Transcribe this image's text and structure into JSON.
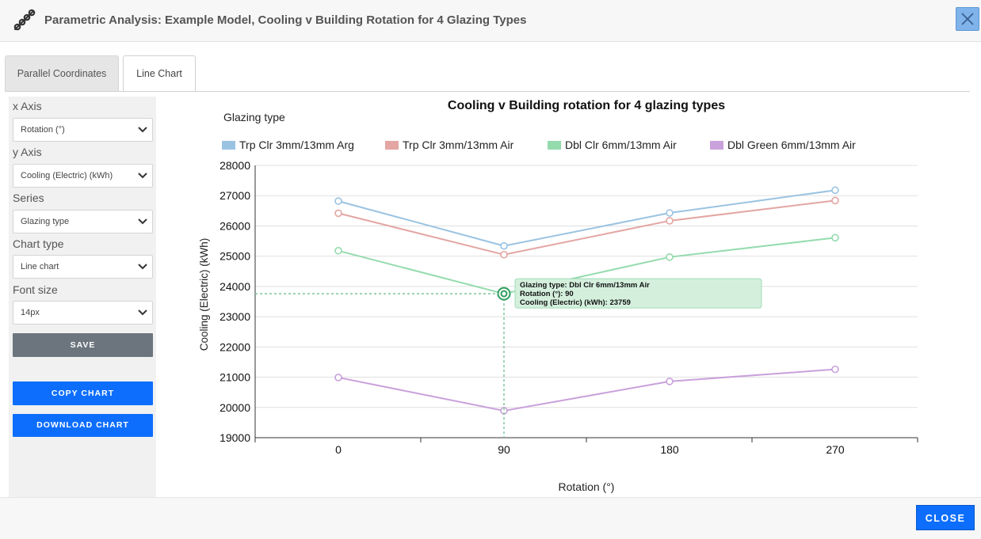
{
  "window": {
    "title": "Parametric Analysis: Example Model, Cooling v Building Rotation for 4 Glazing Types"
  },
  "tabs": [
    {
      "label": "Parallel Coordinates",
      "active": false
    },
    {
      "label": "Line Chart",
      "active": true
    }
  ],
  "sidebar": {
    "x_axis": {
      "label": "x Axis",
      "value": "Rotation (°)"
    },
    "y_axis": {
      "label": "y Axis",
      "value": "Cooling (Electric) (kWh)"
    },
    "series": {
      "label": "Series",
      "value": "Glazing type"
    },
    "chart_type": {
      "label": "Chart type",
      "value": "Line chart"
    },
    "font_size": {
      "label": "Font size",
      "value": "14px"
    },
    "save_label": "SAVE",
    "copy_label": "COPY CHART",
    "download_label": "DOWNLOAD CHART"
  },
  "footer": {
    "close_label": "CLOSE"
  },
  "chart_data": {
    "type": "line",
    "title": "Cooling v Building rotation for 4 glazing types",
    "legend_title": "Glazing type",
    "legend_position": "top",
    "xlabel": "Rotation (°)",
    "ylabel": "Cooling (Electric) (kWh)",
    "x": [
      0,
      90,
      180,
      270
    ],
    "x_ticks": [
      "0",
      "90",
      "180",
      "270"
    ],
    "y_ticks": [
      "28000",
      "27000",
      "26000",
      "25000",
      "24000",
      "23000",
      "22000",
      "21000",
      "20000",
      "19000"
    ],
    "ylim": [
      19000,
      28000
    ],
    "grid": true,
    "series": [
      {
        "name": "Trp Clr 3mm/13mm Arg",
        "color": "#9ac3e2",
        "values": [
          26820,
          25340,
          26430,
          27180
        ]
      },
      {
        "name": "Trp Clr 3mm/13mm Air",
        "color": "#e3a6a3",
        "values": [
          26420,
          25050,
          26170,
          26840
        ]
      },
      {
        "name": "Dbl Clr 6mm/13mm Air",
        "color": "#94dbae",
        "values": [
          25180,
          23759,
          24970,
          25610
        ]
      },
      {
        "name": "Dbl Green 6mm/13mm Air",
        "color": "#c9a1db",
        "values": [
          20990,
          19890,
          20860,
          21260
        ]
      }
    ],
    "tooltip": {
      "series_index": 2,
      "point_index": 1,
      "lines": [
        "Glazing type: Dbl Clr 6mm/13mm Air",
        "Rotation (°): 90",
        "Cooling (Electric) (kWh): 23759"
      ],
      "color": "#d4f0dd"
    }
  }
}
